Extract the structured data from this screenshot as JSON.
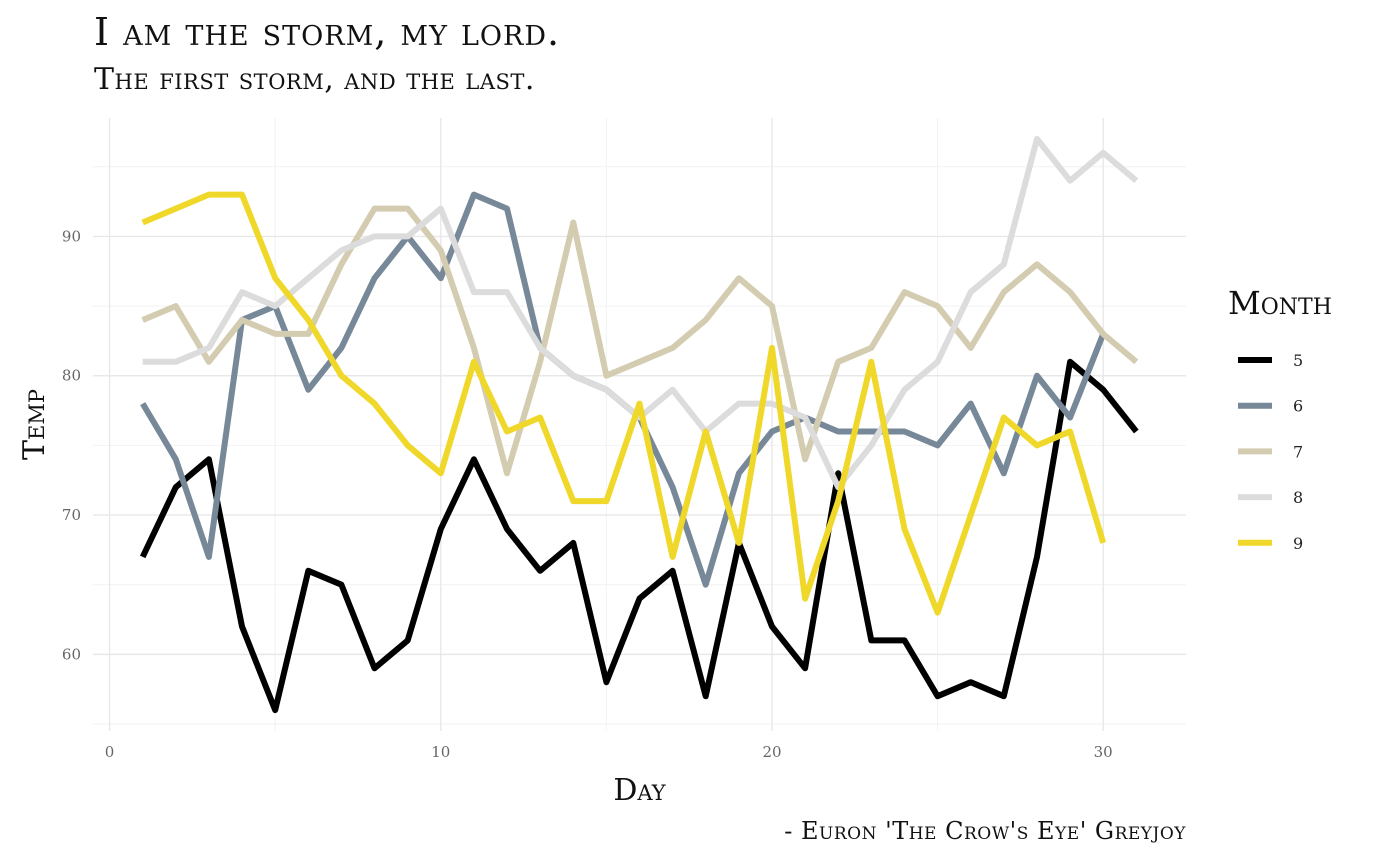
{
  "title": "I am the storm, my lord.",
  "subtitle": "The first storm, and the last.",
  "caption": "- Euron 'The Crow's Eye' Greyjoy",
  "chart_data": {
    "type": "line",
    "title": "I am the storm, my lord.",
    "subtitle": "The first storm, and the last.",
    "xlabel": "Day",
    "ylabel": "Temp",
    "xlim": [
      -0.5,
      32.5
    ],
    "ylim": [
      54.5,
      98.5
    ],
    "xticks": [
      0,
      10,
      20,
      30
    ],
    "yticks": [
      60,
      70,
      80,
      90
    ],
    "grid": true,
    "legend": {
      "title": "Month",
      "position": "right"
    },
    "series": [
      {
        "name": "5",
        "color": "#000000",
        "x": [
          1,
          2,
          3,
          4,
          5,
          6,
          7,
          8,
          9,
          10,
          11,
          12,
          13,
          14,
          15,
          16,
          17,
          18,
          19,
          20,
          21,
          22,
          23,
          24,
          25,
          26,
          27,
          28,
          29,
          30,
          31
        ],
        "values": [
          67,
          72,
          74,
          62,
          56,
          66,
          65,
          59,
          61,
          69,
          74,
          69,
          66,
          68,
          58,
          64,
          66,
          57,
          68,
          62,
          59,
          73,
          61,
          61,
          57,
          58,
          57,
          67,
          81,
          79,
          76
        ]
      },
      {
        "name": "6",
        "color": "#778899",
        "x": [
          1,
          2,
          3,
          4,
          5,
          6,
          7,
          8,
          9,
          10,
          11,
          12,
          13,
          14,
          15,
          16,
          17,
          18,
          19,
          20,
          21,
          22,
          23,
          24,
          25,
          26,
          27,
          28,
          29,
          30
        ],
        "values": [
          78,
          74,
          67,
          84,
          85,
          79,
          82,
          87,
          90,
          87,
          93,
          92,
          82,
          80,
          79,
          77,
          72,
          65,
          73,
          76,
          77,
          76,
          76,
          76,
          75,
          78,
          73,
          80,
          77,
          83
        ]
      },
      {
        "name": "7",
        "color": "#d4ccb0",
        "x": [
          1,
          2,
          3,
          4,
          5,
          6,
          7,
          8,
          9,
          10,
          11,
          12,
          13,
          14,
          15,
          16,
          17,
          18,
          19,
          20,
          21,
          22,
          23,
          24,
          25,
          26,
          27,
          28,
          29,
          30,
          31
        ],
        "values": [
          84,
          85,
          81,
          84,
          83,
          83,
          88,
          92,
          92,
          89,
          82,
          73,
          81,
          91,
          80,
          81,
          82,
          84,
          87,
          85,
          74,
          81,
          82,
          86,
          85,
          82,
          86,
          88,
          86,
          83,
          81
        ]
      },
      {
        "name": "8",
        "color": "#dcdcdc",
        "x": [
          1,
          2,
          3,
          4,
          5,
          6,
          7,
          8,
          9,
          10,
          11,
          12,
          13,
          14,
          15,
          16,
          17,
          18,
          19,
          20,
          21,
          22,
          23,
          24,
          25,
          26,
          27,
          28,
          29,
          30,
          31
        ],
        "values": [
          81,
          81,
          82,
          86,
          85,
          87,
          89,
          90,
          90,
          92,
          86,
          86,
          82,
          80,
          79,
          77,
          79,
          76,
          78,
          78,
          77,
          72,
          75,
          79,
          81,
          86,
          88,
          97,
          94,
          96,
          94
        ]
      },
      {
        "name": "9",
        "color": "#f0d82a",
        "x": [
          1,
          2,
          3,
          4,
          5,
          6,
          7,
          8,
          9,
          10,
          11,
          12,
          13,
          14,
          15,
          16,
          17,
          18,
          19,
          20,
          21,
          22,
          23,
          24,
          25,
          26,
          27,
          28,
          29,
          30
        ],
        "values": [
          91,
          92,
          93,
          93,
          87,
          84,
          80,
          78,
          75,
          73,
          81,
          76,
          77,
          71,
          71,
          78,
          67,
          76,
          68,
          82,
          64,
          71,
          81,
          69,
          63,
          70,
          77,
          75,
          76,
          68
        ]
      }
    ]
  }
}
